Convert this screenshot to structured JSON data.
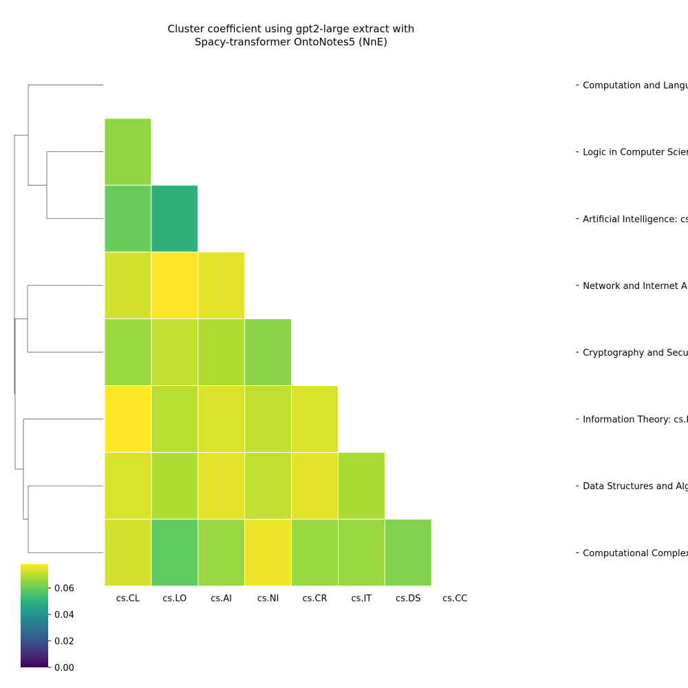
{
  "chart_data": {
    "type": "heatmap",
    "title": "Cluster coefficient using gpt2-large extract with\nSpacy-transformer OntoNotes5 (NnE)",
    "row_labels": [
      "Computation and Language: cs.CL",
      "Logic in Computer Science: cs.LO",
      "Artificial Intelligence: cs.AI",
      "Network and Internet Architecture: cs.NI",
      "Cryptography and Security: cs.CR",
      "Information Theory: cs.IT",
      "Data Structures and Algorithms: cs.DS",
      "Computational Complexity: cs.CC"
    ],
    "col_labels": [
      "cs.CL",
      "cs.LO",
      "cs.AI",
      "cs.NI",
      "cs.CR",
      "cs.IT",
      "cs.DS",
      "cs.CC"
    ],
    "mask": "upper triangle incl. diagonal",
    "values": [
      [
        null,
        null,
        null,
        null,
        null,
        null,
        null,
        null
      ],
      [
        0.065,
        null,
        null,
        null,
        null,
        null,
        null,
        null
      ],
      [
        0.06,
        0.05,
        null,
        null,
        null,
        null,
        null,
        null
      ],
      [
        0.073,
        0.078,
        0.075,
        null,
        null,
        null,
        null,
        null
      ],
      [
        0.066,
        0.071,
        0.069,
        0.064,
        null,
        null,
        null,
        null
      ],
      [
        0.078,
        0.07,
        0.074,
        0.071,
        0.074,
        null,
        null,
        null
      ],
      [
        0.074,
        0.069,
        0.075,
        0.071,
        0.075,
        0.068,
        null,
        null
      ],
      [
        0.073,
        0.059,
        0.066,
        0.076,
        0.066,
        0.066,
        0.063,
        null
      ]
    ],
    "colorbar": {
      "colormap": "viridis",
      "vmin": 0.0,
      "vmax": 0.078,
      "ticks": [
        0.0,
        0.02,
        0.04,
        0.06
      ],
      "tick_labels": [
        "0.00",
        "0.02",
        "0.04",
        "0.06"
      ]
    },
    "dendrogram": {
      "side": "left",
      "merges": [
        [
          "cs.LO",
          "cs.AI"
        ],
        [
          "cs.CL",
          "(cs.LO, cs.AI)"
        ],
        [
          "cs.NI",
          "cs.CR"
        ],
        [
          "cs.DS",
          "cs.CC"
        ],
        [
          "cs.IT",
          "(cs.DS, cs.CC)"
        ],
        [
          "(cs.NI, cs.CR)",
          "(cs.IT, cs.DS, cs.CC)"
        ],
        [
          "(cs.CL, cs.LO, cs.AI)",
          "(cs.NI, cs.CR, cs.IT, cs.DS, cs.CC)"
        ]
      ]
    }
  }
}
